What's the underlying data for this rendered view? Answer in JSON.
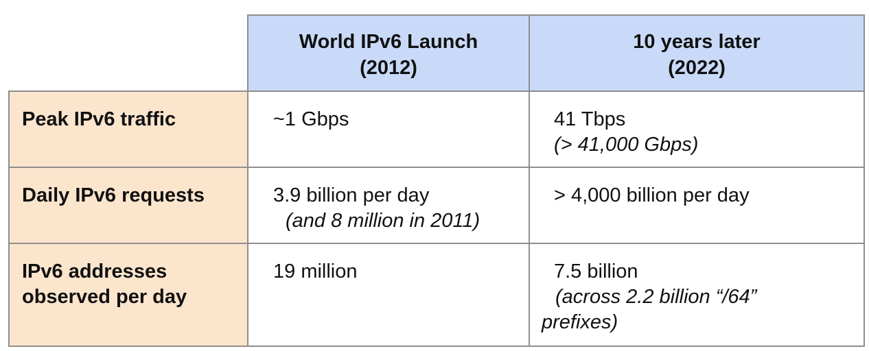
{
  "header": {
    "col1": {
      "line1": "World IPv6 Launch",
      "line2": "(2012)"
    },
    "col2": {
      "line1": "10 years later",
      "line2": "(2022)"
    }
  },
  "rows": [
    {
      "label_line1": "Peak IPv6 traffic",
      "label_line2": "",
      "col1_main": "~1 Gbps",
      "col1_note": "",
      "col2_main": "41 Tbps",
      "col2_note_line1": "(> 41,000 Gbps)",
      "col2_note_line2": ""
    },
    {
      "label_line1": "Daily IPv6 requests",
      "label_line2": "",
      "col1_main": "3.9 billion per day",
      "col1_note": "(and 8 million in 2011)",
      "col2_main": "> 4,000 billion per day",
      "col2_note_line1": "",
      "col2_note_line2": ""
    },
    {
      "label_line1": "IPv6 addresses",
      "label_line2": "observed per day",
      "col1_main": "19 million",
      "col1_note": "",
      "col2_main": "7.5 billion",
      "col2_note_line1": "(across 2.2 billion “/64”",
      "col2_note_line2": "prefixes)"
    }
  ],
  "colors": {
    "header_bg": "#c9daf8",
    "row_header_bg": "#fce5cd",
    "border": "#8e8e8e"
  }
}
